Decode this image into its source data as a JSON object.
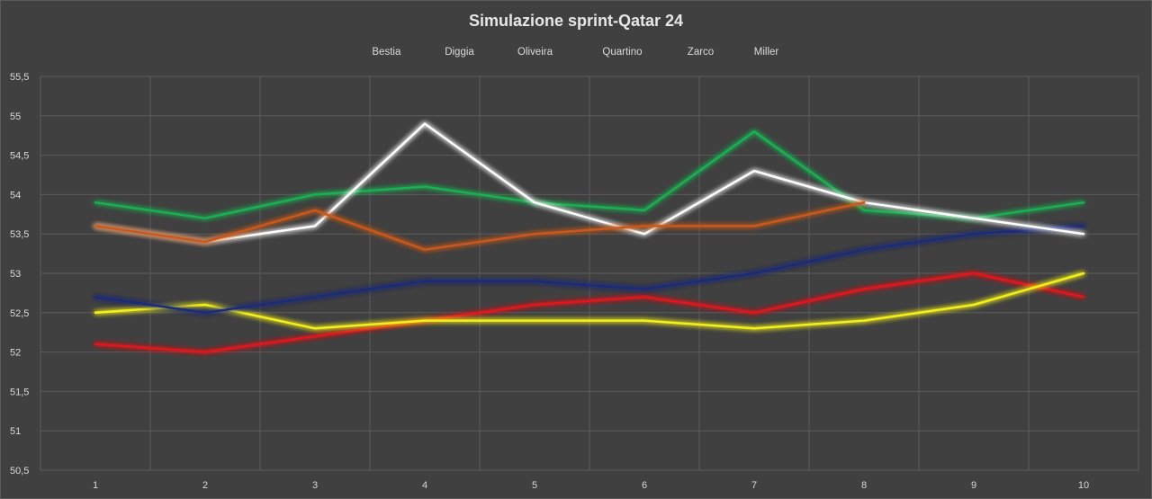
{
  "chart_data": {
    "type": "line",
    "title": "Simulazione sprint-Qatar 24",
    "xlabel": "",
    "ylabel": "",
    "categories": [
      "1",
      "2",
      "3",
      "4",
      "5",
      "6",
      "7",
      "8",
      "9",
      "10"
    ],
    "ylim": [
      50.5,
      55.5
    ],
    "yticks": [
      50.5,
      51,
      51.5,
      52,
      52.5,
      53,
      53.5,
      54,
      54.5,
      55,
      55.5
    ],
    "ytick_labels": [
      "50,5",
      "51",
      "51,5",
      "52",
      "52,5",
      "53",
      "53,5",
      "54",
      "54,5",
      "55",
      "55,5"
    ],
    "grid": true,
    "legend_position": "top",
    "series": [
      {
        "name": "Bestia",
        "color": "#e0171d",
        "values": [
          52.1,
          52.0,
          52.2,
          52.4,
          52.6,
          52.7,
          52.5,
          52.8,
          53.0,
          52.7
        ]
      },
      {
        "name": "Diggia",
        "color": "#f2ef1a",
        "values": [
          52.5,
          52.6,
          52.3,
          52.4,
          52.4,
          52.4,
          52.3,
          52.4,
          52.6,
          53.0
        ]
      },
      {
        "name": "Oliveira",
        "color": "#1fae52",
        "values": [
          53.9,
          53.7,
          54.0,
          54.1,
          53.9,
          53.8,
          54.8,
          53.8,
          53.7,
          53.9
        ]
      },
      {
        "name": "Quartino",
        "color": "#1c2c7a",
        "values": [
          52.7,
          52.5,
          52.7,
          52.9,
          52.9,
          52.8,
          53.0,
          53.3,
          53.5,
          53.6
        ]
      },
      {
        "name": "Zarco",
        "color": "#ffffff",
        "values": [
          53.6,
          53.4,
          53.6,
          54.9,
          53.9,
          53.5,
          54.3,
          53.9,
          53.7,
          53.5
        ]
      },
      {
        "name": "Miller",
        "color": "#c8591a",
        "values": [
          53.6,
          53.4,
          53.8,
          53.3,
          53.5,
          53.6,
          53.6,
          53.9,
          null,
          null
        ]
      }
    ]
  }
}
